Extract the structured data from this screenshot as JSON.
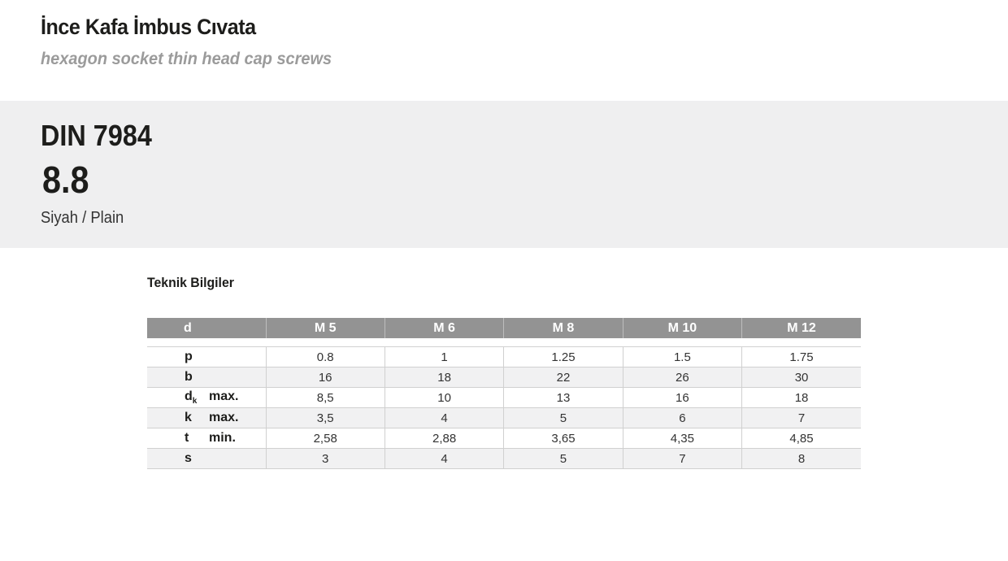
{
  "header": {
    "title": "İnce Kafa İmbus Cıvata",
    "subtitle": "hexagon socket thin head cap screws"
  },
  "product": {
    "standard": "DIN 7984",
    "grade": "8.8",
    "finish": "Siyah / Plain"
  },
  "section_label": "Teknik Bilgiler",
  "table": {
    "header": {
      "label": "d",
      "sizes": [
        "M 5",
        "M 6",
        "M 8",
        "M 10",
        "M 12"
      ]
    },
    "rows": [
      {
        "symbol": "p",
        "sub": "",
        "qualifier": "",
        "values": [
          "0.8",
          "1",
          "1.25",
          "1.5",
          "1.75"
        ]
      },
      {
        "symbol": "b",
        "sub": "",
        "qualifier": "",
        "values": [
          "16",
          "18",
          "22",
          "26",
          "30"
        ]
      },
      {
        "symbol": "d",
        "sub": "k",
        "qualifier": "max.",
        "values": [
          "8,5",
          "10",
          "13",
          "16",
          "18"
        ]
      },
      {
        "symbol": "k",
        "sub": "",
        "qualifier": "max.",
        "values": [
          "3,5",
          "4",
          "5",
          "6",
          "7"
        ]
      },
      {
        "symbol": "t",
        "sub": "",
        "qualifier": "min.",
        "values": [
          "2,58",
          "2,88",
          "3,65",
          "4,35",
          "4,85"
        ]
      },
      {
        "symbol": "s",
        "sub": "",
        "qualifier": "",
        "values": [
          "3",
          "4",
          "5",
          "7",
          "8"
        ]
      }
    ]
  }
}
